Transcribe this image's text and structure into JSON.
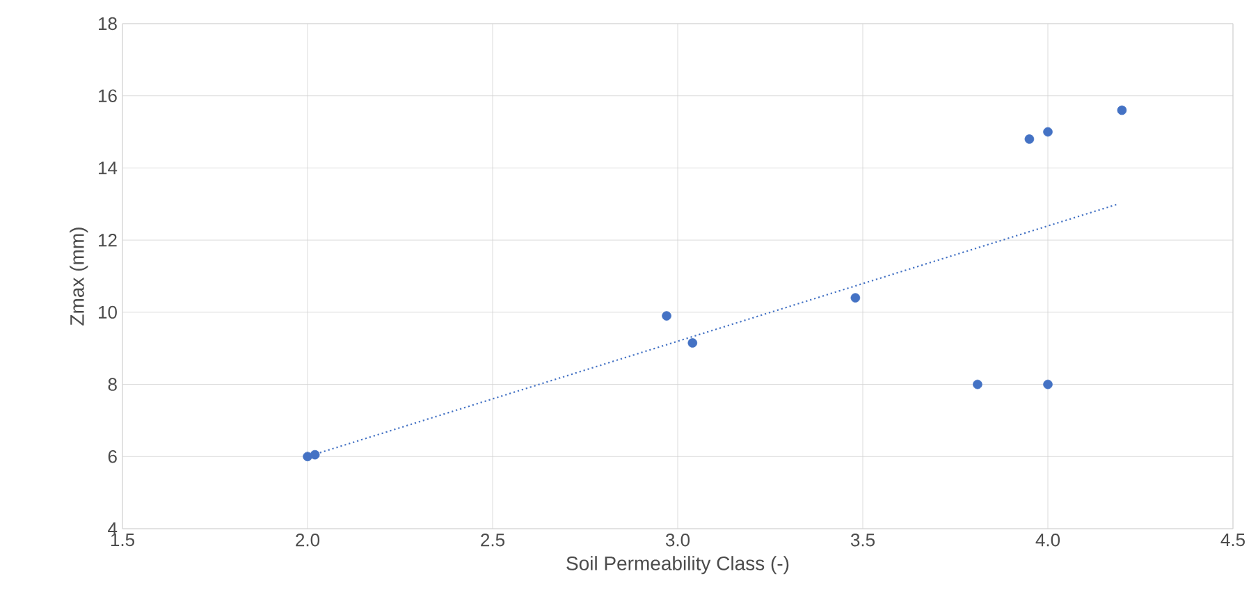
{
  "chart_data": {
    "type": "scatter",
    "xlabel": "Soil Permeability Class (-)",
    "ylabel": "Zmax (mm)",
    "xlim": [
      1.5,
      4.5
    ],
    "xticks": [
      {
        "value": 1.5,
        "label": "1.5"
      },
      {
        "value": 2,
        "label": "2.0"
      },
      {
        "value": 2.5,
        "label": "2.5"
      },
      {
        "value": 3,
        "label": "3.0"
      },
      {
        "value": 3.5,
        "label": "3.5"
      },
      {
        "value": 4,
        "label": "4.0"
      },
      {
        "value": 4.5,
        "label": "4.5"
      }
    ],
    "ylim": [
      4,
      18
    ],
    "yticks": [
      4,
      6,
      8,
      10,
      12,
      14,
      16,
      18
    ],
    "grid": true,
    "series": [
      {
        "marker": "circle",
        "color": "#4472c4",
        "x": [
          2.0,
          2.02,
          2.97,
          3.04,
          3.48,
          3.81,
          3.95,
          4.0,
          4.0,
          4.2
        ],
        "values": [
          6.0,
          6.05,
          9.9,
          9.15,
          10.4,
          8.0,
          14.8,
          15.0,
          8.0,
          15.6
        ]
      },
      {
        "type": "line",
        "color": "#4472c4",
        "line_style": "dotted",
        "x": [
          2.0,
          4.19
        ],
        "values": [
          6.0,
          13.0
        ]
      }
    ]
  }
}
